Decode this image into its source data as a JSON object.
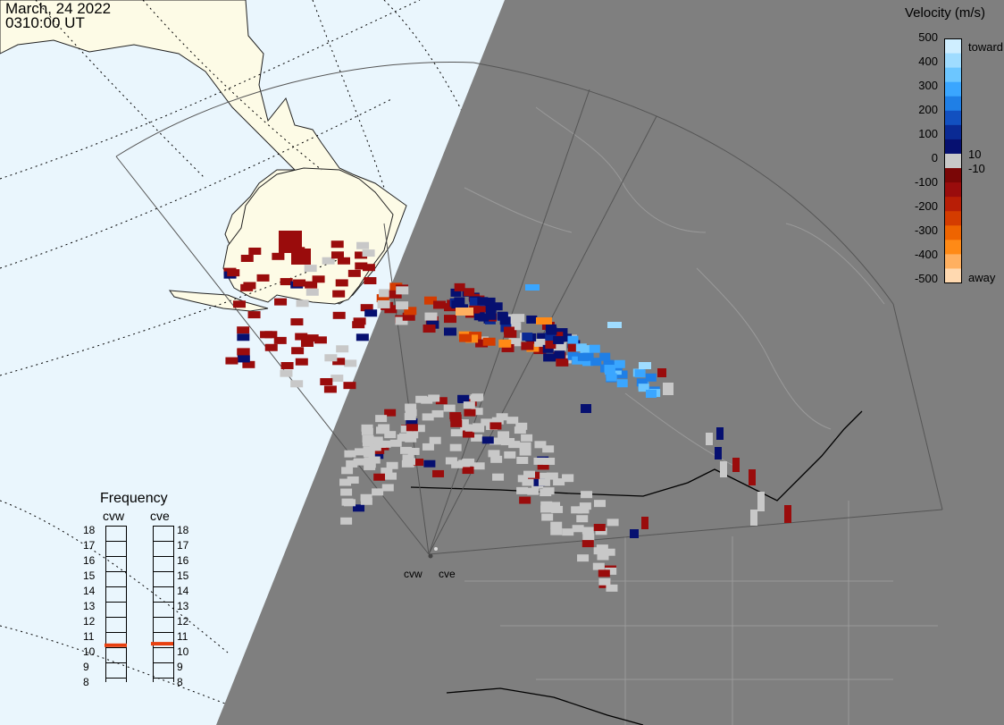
{
  "header": {
    "date": "March, 24 2022",
    "time": "0310:00 UT"
  },
  "colorbar": {
    "title": "Velocity (m/s)",
    "ticks": [
      "500",
      "400",
      "300",
      "200",
      "100",
      "0",
      "-100",
      "-200",
      "-300",
      "-400",
      "-500"
    ],
    "label_toward": "toward",
    "label_away": "away",
    "label_pos": "10",
    "label_neg": "-10",
    "colors": [
      "#cfeeff",
      "#9fdcff",
      "#6cc6ff",
      "#3aa6ff",
      "#1f7fe6",
      "#1250c0",
      "#0a2a94",
      "#061070",
      "#c8c8c8",
      "#7a0606",
      "#9a0c0c",
      "#b81e06",
      "#d43c00",
      "#ee6400",
      "#ff8a16",
      "#ffb060",
      "#ffd9b0"
    ]
  },
  "frequency_panel": {
    "title": "Frequency",
    "left_label": "cvw",
    "right_label": "cve",
    "scale": [
      "18",
      "17",
      "16",
      "15",
      "14",
      "13",
      "12",
      "11",
      "10",
      "9",
      "8"
    ],
    "cvw_frequency": 10.6,
    "cve_frequency": 10.7,
    "marker_color": "#e84010"
  },
  "sites": {
    "cvw": "cvw",
    "cve": "cve"
  },
  "map_colors": {
    "ocean": "#eaf6fd",
    "land": "#fdfbe6",
    "night": "#7f7f7f",
    "ground_scatter": "#c8c8c8"
  }
}
